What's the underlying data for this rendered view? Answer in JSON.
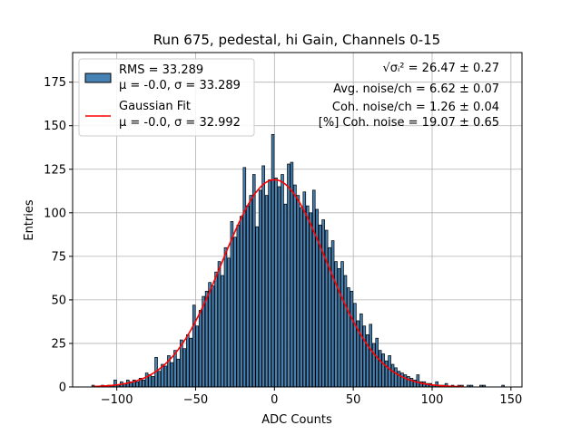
{
  "chart_data": {
    "type": "bar",
    "title": "Run 675, pedestal, hi Gain, Channels 0-15",
    "xlabel": "ADC Counts",
    "ylabel": "Entries",
    "xlim": [
      -128,
      157
    ],
    "ylim": [
      0,
      192
    ],
    "xticks": [
      -100,
      -50,
      0,
      50,
      100,
      150
    ],
    "yticks": [
      0,
      25,
      50,
      75,
      100,
      125,
      150,
      175
    ],
    "grid": true,
    "legend_placement": "top-left",
    "bar_color": "#4682b4",
    "fit_color": "#ff0000",
    "x": [
      -115,
      -113,
      -111,
      -109,
      -107,
      -105,
      -103,
      -101,
      -99,
      -97,
      -95,
      -93,
      -91,
      -89,
      -87,
      -85,
      -83,
      -81,
      -79,
      -77,
      -75,
      -73,
      -71,
      -69,
      -67,
      -65,
      -63,
      -61,
      -59,
      -57,
      -55,
      -53,
      -51,
      -49,
      -47,
      -45,
      -43,
      -41,
      -39,
      -37,
      -35,
      -33,
      -31,
      -29,
      -27,
      -25,
      -23,
      -21,
      -19,
      -17,
      -15,
      -13,
      -11,
      -9,
      -7,
      -5,
      -3,
      -1,
      1,
      3,
      5,
      7,
      9,
      11,
      13,
      15,
      17,
      19,
      21,
      23,
      25,
      27,
      29,
      31,
      33,
      35,
      37,
      39,
      41,
      43,
      45,
      47,
      49,
      51,
      53,
      55,
      57,
      59,
      61,
      63,
      65,
      67,
      69,
      71,
      73,
      75,
      77,
      79,
      81,
      83,
      85,
      87,
      89,
      91,
      93,
      95,
      97,
      99,
      101,
      103,
      105,
      107,
      109,
      111,
      113,
      115,
      117,
      119,
      121,
      123,
      125,
      127,
      129,
      131,
      133,
      135,
      137,
      139,
      141,
      143,
      145
    ],
    "values": [
      1,
      0,
      0,
      1,
      0,
      1,
      1,
      4,
      1,
      3,
      2,
      4,
      3,
      4,
      3,
      5,
      4,
      8,
      7,
      6,
      17,
      9,
      13,
      12,
      18,
      14,
      21,
      16,
      27,
      22,
      30,
      28,
      47,
      35,
      44,
      52,
      55,
      60,
      58,
      66,
      72,
      64,
      80,
      74,
      95,
      86,
      93,
      98,
      126,
      104,
      110,
      122,
      92,
      113,
      127,
      110,
      119,
      145,
      120,
      115,
      122,
      105,
      128,
      129,
      116,
      110,
      103,
      112,
      104,
      100,
      113,
      102,
      93,
      96,
      90,
      80,
      84,
      72,
      68,
      72,
      64,
      57,
      55,
      48,
      38,
      42,
      35,
      30,
      36,
      25,
      28,
      21,
      19,
      15,
      18,
      13,
      11,
      9,
      8,
      7,
      6,
      5,
      4,
      7,
      3,
      3,
      2,
      2,
      1,
      3,
      1,
      1,
      2,
      0,
      1,
      0,
      1,
      1,
      0,
      1,
      1,
      0,
      0,
      1,
      1,
      0,
      0,
      0,
      0,
      0,
      1
    ],
    "fit": {
      "mu": 0.0,
      "sigma": 32.992,
      "peak": 119
    },
    "legend": [
      {
        "line1": "RMS = 33.289",
        "line2": "μ = -0.0, σ = 33.289"
      },
      {
        "line1": "Gaussian Fit",
        "line2": "μ = -0.0, σ = 32.992"
      }
    ],
    "annotations": {
      "sigma_lhs": "√σᵢ²",
      "sigma_rhs": "= 26.47 ± 0.27",
      "avg": "Avg. noise/ch = 6.62 ± 0.07",
      "coh": "Coh. noise/ch = 1.26 ± 0.04",
      "pct": "[%] Coh. noise = 19.07 ± 0.65"
    }
  }
}
